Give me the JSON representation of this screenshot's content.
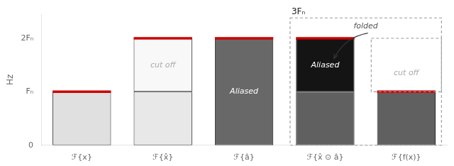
{
  "chart_data": {
    "type": "bar",
    "stacked": true,
    "ylabel": "Hz",
    "categories": [
      "ℱ{x}",
      "ℱ{x̂}",
      "ℱ{â}",
      "ℱ{x̂ ⊙ â}",
      "ℱ{f(x)}"
    ],
    "series": [
      {
        "values": [
          1.0,
          1.0,
          2.0,
          1.0,
          1.0
        ],
        "colors": [
          "#e0e0e0",
          "#e8e8e8",
          "#686868",
          "#606060",
          "#606060"
        ]
      },
      {
        "values": [
          0.0,
          1.0,
          0.0,
          1.0,
          0.0
        ],
        "colors": [
          null,
          "#f8f8f8",
          null,
          "#141414",
          null
        ]
      },
      {
        "type": "line",
        "values": [
          1.0,
          2.0,
          2.0,
          2.0,
          1.0
        ],
        "color": "#cc0000",
        "marker": "line",
        "line_style": "none"
      }
    ],
    "ylim": [
      0,
      2.45
    ],
    "yticks": [
      0,
      {
        "value": 1,
        "label": "Fₙ"
      },
      {
        "value": 2,
        "label": "2Fₙ"
      }
    ],
    "grid": false,
    "annotations": [
      {
        "text": "cut off",
        "x": "ℱ{x̂}",
        "y": 1.5,
        "color": "#aaaaaa"
      },
      {
        "text": "Aliased",
        "x": "ℱ{â}",
        "y": 1.0,
        "color": "#ffffff"
      },
      {
        "text": "Aliased",
        "x": "ℱ{x̂ ⊙ â}",
        "y": 1.5,
        "color": "#ffffff"
      },
      {
        "text": "cut off",
        "x": "ℱ{f(x)}",
        "y": 1.35,
        "color": "#aaaaaa"
      },
      {
        "text": "folded",
        "y": 2.15,
        "color": "#555555",
        "arrow_to": {
          "x": "ℱ{x̂ ⊙ â}",
          "y": 1.62
        }
      }
    ],
    "regions": [
      {
        "x": [
          "ℱ{x̂ ⊙ â}",
          "ℱ{f(x)}"
        ],
        "ylim": [
          0,
          2.38
        ],
        "label": "3Fₙ",
        "color": "#999999"
      },
      {
        "x": [
          "ℱ{f(x)}",
          "ℱ{f(x)}"
        ],
        "ylim": [
          1,
          2
        ],
        "color": "#999999"
      }
    ]
  }
}
